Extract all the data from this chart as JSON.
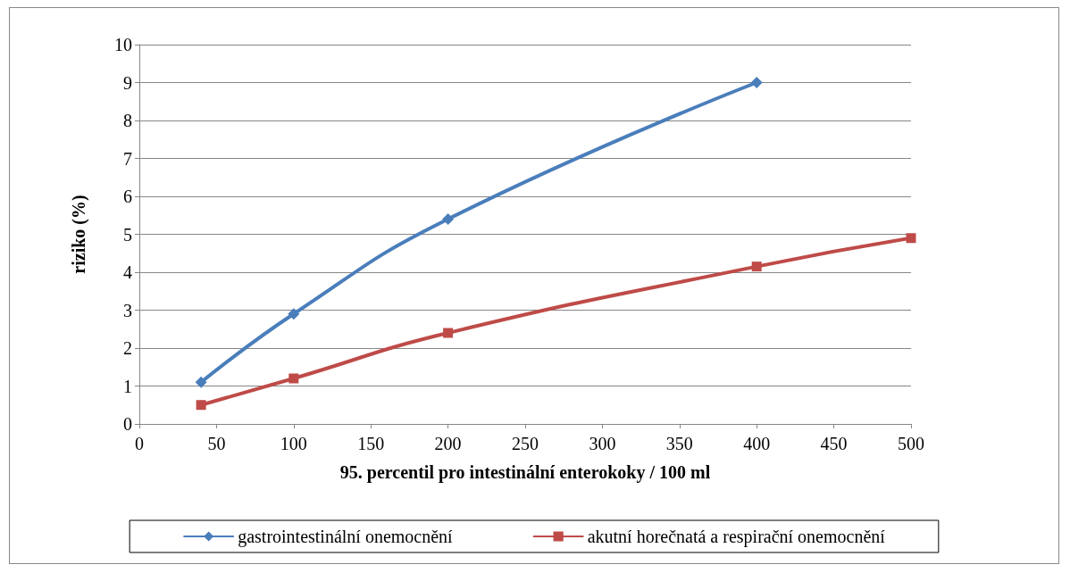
{
  "chart_data": {
    "type": "line",
    "xlabel": "95. percentil pro intestinální enterokoky / 100 ml",
    "ylabel": "riziko (%)",
    "x": [
      40,
      100,
      200,
      400,
      500
    ],
    "series": [
      {
        "name": "gastrointestinální onemocnění",
        "color": "#4a7ebb",
        "marker": "diamond",
        "values": [
          1.1,
          2.9,
          5.4,
          9.0,
          null
        ]
      },
      {
        "name": "akutní horečnatá a respirační onemocnění",
        "color": "#be4b48",
        "marker": "square",
        "values": [
          0.5,
          1.2,
          2.4,
          4.15,
          4.9
        ]
      }
    ],
    "xlim": [
      0,
      500
    ],
    "xticks": [
      0,
      50,
      100,
      150,
      200,
      250,
      300,
      350,
      400,
      450,
      500
    ],
    "ylim": [
      0,
      10
    ],
    "yticks": [
      0,
      1,
      2,
      3,
      4,
      5,
      6,
      7,
      8,
      9,
      10
    ],
    "grid": "y",
    "legend": "bottom",
    "line_style": "solid"
  }
}
